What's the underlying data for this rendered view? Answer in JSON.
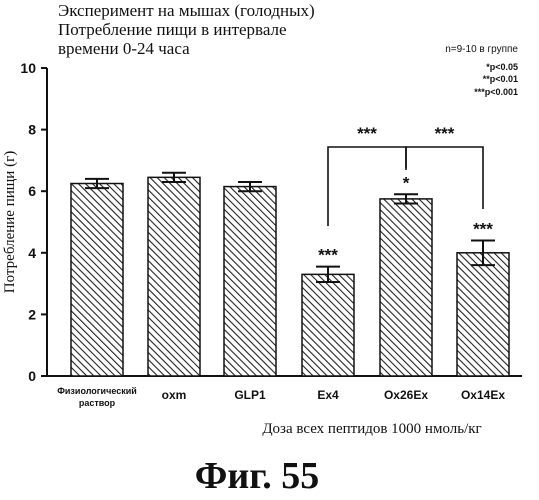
{
  "figure": {
    "title_lines": [
      "Эксперимент на мышах (голодных)",
      "Потребление пищи в интервале",
      "времени 0-24 часа"
    ],
    "group_note": "n=9-10 в группе",
    "significance_legend": [
      "*p<0.05",
      "**p<0.01",
      "***p<0.001"
    ],
    "caption": "Фиг. 55"
  },
  "chart_data": {
    "type": "bar",
    "categories": [
      "Физиологический раствор",
      "oxm",
      "GLP1",
      "Ex4",
      "Ox26Ex",
      "Ox14Ex"
    ],
    "category_label_lines": [
      [
        "Физиологический",
        "раствор"
      ],
      [
        "oxm"
      ],
      [
        "GLP1"
      ],
      [
        "Ex4"
      ],
      [
        "Ox26Ex"
      ],
      [
        "Ox14Ex"
      ]
    ],
    "values": [
      6.25,
      6.45,
      6.15,
      3.3,
      5.75,
      4.0
    ],
    "errors": [
      0.15,
      0.15,
      0.15,
      0.25,
      0.15,
      0.4
    ],
    "significance": [
      "",
      "",
      "",
      "***",
      "*",
      "***"
    ],
    "comparisons": [
      {
        "from": "Ex4",
        "to": "Ox26Ex",
        "label": "***"
      },
      {
        "from": "Ox26Ex",
        "to": "Ox14Ex",
        "label": "***"
      }
    ],
    "ylabel": "Потребление пищи (г)",
    "xlabel": "Доза всех пептидов 1000 нмоль/кг",
    "ylim": [
      0,
      10
    ],
    "yticks": [
      0,
      2,
      4,
      6,
      8,
      10
    ],
    "bar_fill": "hatched",
    "grid": false
  }
}
